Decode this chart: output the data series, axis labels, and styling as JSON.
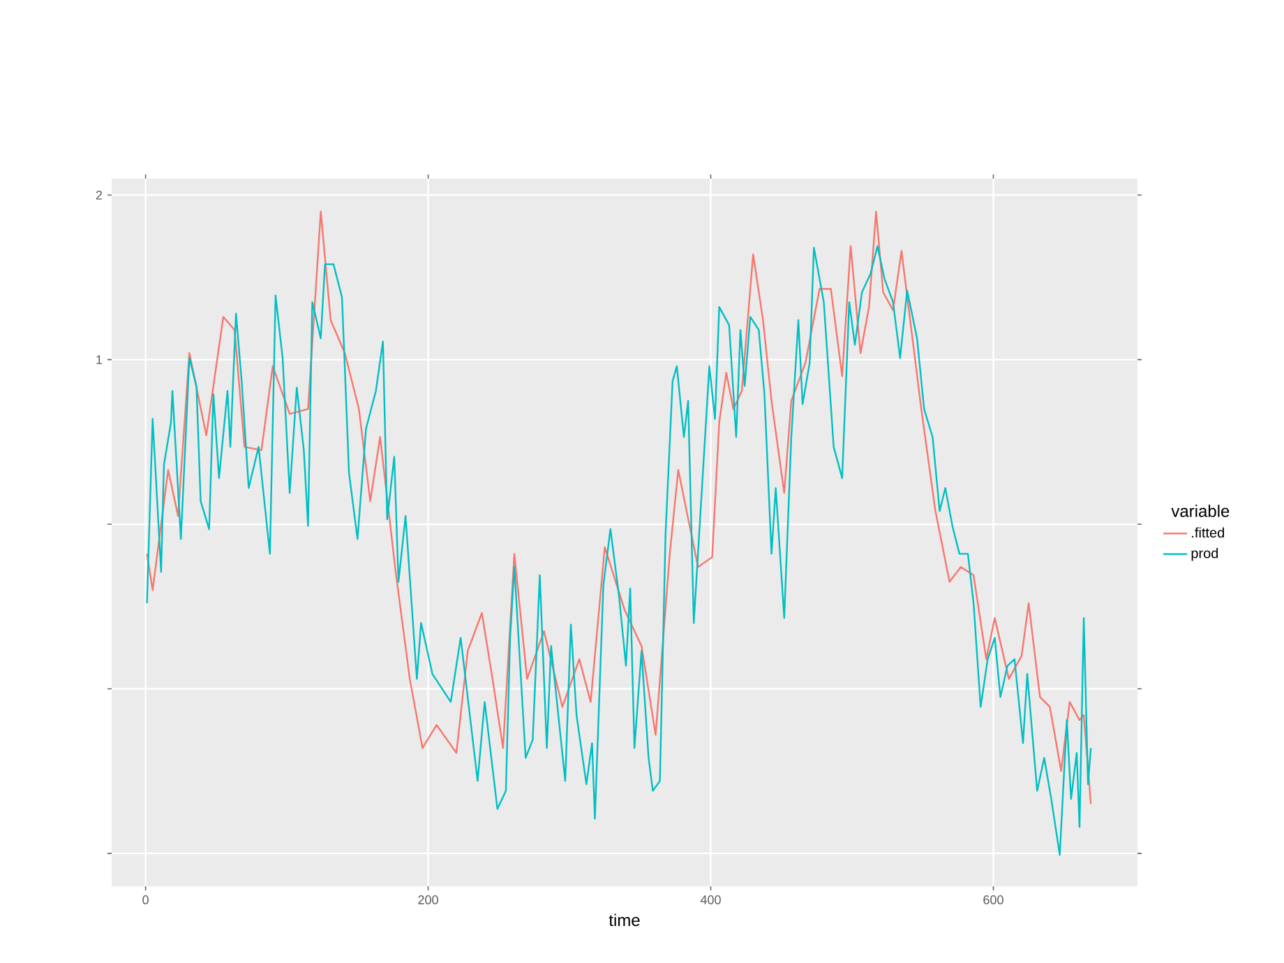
{
  "chart_data": {
    "type": "line",
    "xlabel": "time",
    "legend_title": "variable",
    "legend": "right",
    "grid": true,
    "xlim": [
      -24,
      702
    ],
    "ylim": [
      -2.2,
      2.1
    ],
    "xticks": [
      0,
      200,
      400,
      600
    ],
    "yticks": [
      {
        "value": -2,
        "label": null
      },
      {
        "value": -1,
        "label": null
      },
      {
        "value": 0,
        "label": null
      },
      1,
      2
    ],
    "series": [
      {
        "name": ".fitted",
        "color": "#f8766d",
        "x": [
          1,
          5,
          16,
          23,
          31,
          43,
          55,
          63,
          70,
          82,
          90,
          102,
          115,
          124,
          131,
          141,
          151,
          159,
          166,
          177,
          187,
          196,
          206,
          220,
          228,
          238,
          245,
          253,
          261,
          270,
          282,
          295,
          307,
          315,
          325,
          339,
          351,
          361,
          371,
          377,
          391,
          401,
          406,
          411,
          416,
          422,
          430,
          437,
          443,
          452,
          457,
          467,
          477,
          485,
          493,
          499,
          506,
          512,
          517,
          522,
          529,
          535,
          542,
          549,
          559,
          569,
          577,
          586,
          595,
          601,
          611,
          620,
          625,
          633,
          640,
          648,
          654,
          661,
          664,
          669
        ],
        "values": [
          -0.18,
          -0.4,
          0.33,
          0.05,
          1.04,
          0.54,
          1.26,
          1.18,
          0.47,
          0.45,
          0.96,
          0.67,
          0.7,
          1.9,
          1.24,
          1.04,
          0.7,
          0.14,
          0.53,
          -0.29,
          -0.94,
          -1.36,
          -1.22,
          -1.39,
          -0.77,
          -0.54,
          -0.91,
          -1.36,
          -0.18,
          -0.94,
          -0.65,
          -1.11,
          -0.82,
          -1.08,
          -0.14,
          -0.52,
          -0.74,
          -1.28,
          -0.18,
          0.33,
          -0.26,
          -0.2,
          0.62,
          0.92,
          0.7,
          0.81,
          1.64,
          1.24,
          0.75,
          0.19,
          0.75,
          0.98,
          1.43,
          1.43,
          0.9,
          1.69,
          1.04,
          1.32,
          1.9,
          1.41,
          1.3,
          1.66,
          1.18,
          0.7,
          0.08,
          -0.35,
          -0.26,
          -0.31,
          -0.82,
          -0.57,
          -0.94,
          -0.8,
          -0.48,
          -1.05,
          -1.11,
          -1.5,
          -1.08,
          -1.19,
          -1.16,
          -1.7
        ]
      },
      {
        "name": "prod",
        "color": "#00bfc4",
        "x": [
          1,
          5,
          11,
          13,
          18,
          19,
          25,
          31,
          36,
          39,
          45,
          48,
          52,
          58,
          60,
          64,
          68,
          73,
          80,
          88,
          92,
          97,
          102,
          107,
          112,
          115,
          118,
          124,
          127,
          133,
          139,
          144,
          150,
          156,
          163,
          168,
          171,
          176,
          179,
          184,
          192,
          195,
          203,
          216,
          223,
          235,
          240,
          249,
          255,
          258,
          261,
          269,
          274,
          279,
          284,
          287,
          297,
          301,
          305,
          312,
          316,
          318,
          324,
          329,
          335,
          340,
          343,
          346,
          351,
          356,
          359,
          364,
          368,
          373,
          376,
          381,
          384,
          388,
          394,
          399,
          403,
          406,
          413,
          418,
          421,
          424,
          428,
          434,
          438,
          443,
          446,
          452,
          457,
          462,
          465,
          470,
          473,
          480,
          487,
          493,
          498,
          502,
          507,
          513,
          518,
          523,
          529,
          534,
          539,
          546,
          551,
          557,
          562,
          566,
          571,
          576,
          582,
          586,
          591,
          596,
          601,
          605,
          610,
          615,
          621,
          624,
          631,
          636,
          641,
          647,
          652,
          655,
          659,
          661,
          664,
          667,
          669
        ],
        "values": [
          -0.48,
          0.64,
          -0.29,
          0.36,
          0.62,
          0.81,
          -0.09,
          1.01,
          0.84,
          0.14,
          -0.03,
          0.79,
          0.28,
          0.81,
          0.47,
          1.28,
          0.87,
          0.22,
          0.47,
          -0.18,
          1.39,
          1.01,
          0.19,
          0.83,
          0.45,
          -0.01,
          1.35,
          1.13,
          1.58,
          1.58,
          1.38,
          0.31,
          -0.09,
          0.58,
          0.81,
          1.11,
          0.03,
          0.41,
          -0.35,
          0.05,
          -0.94,
          -0.6,
          -0.91,
          -1.08,
          -0.69,
          -1.56,
          -1.08,
          -1.73,
          -1.62,
          -0.69,
          -0.26,
          -1.42,
          -1.31,
          -0.31,
          -1.36,
          -0.74,
          -1.56,
          -0.61,
          -1.16,
          -1.58,
          -1.33,
          -1.79,
          -0.37,
          -0.03,
          -0.43,
          -0.86,
          -0.39,
          -1.36,
          -0.77,
          -1.42,
          -1.62,
          -1.56,
          -0.06,
          0.87,
          0.96,
          0.53,
          0.75,
          -0.6,
          0.25,
          0.96,
          0.64,
          1.32,
          1.21,
          0.53,
          1.18,
          0.84,
          1.26,
          1.18,
          0.79,
          -0.18,
          0.22,
          -0.57,
          0.53,
          1.24,
          0.73,
          0.98,
          1.68,
          1.35,
          0.47,
          0.28,
          1.35,
          1.09,
          1.41,
          1.52,
          1.69,
          1.49,
          1.35,
          1.01,
          1.42,
          1.13,
          0.7,
          0.53,
          0.08,
          0.22,
          -0.01,
          -0.18,
          -0.18,
          -0.48,
          -1.11,
          -0.82,
          -0.69,
          -1.05,
          -0.86,
          -0.82,
          -1.33,
          -0.91,
          -1.62,
          -1.42,
          -1.67,
          -2.01,
          -1.19,
          -1.67,
          -1.39,
          -1.84,
          -0.57,
          -1.58,
          -1.36
        ]
      }
    ]
  }
}
